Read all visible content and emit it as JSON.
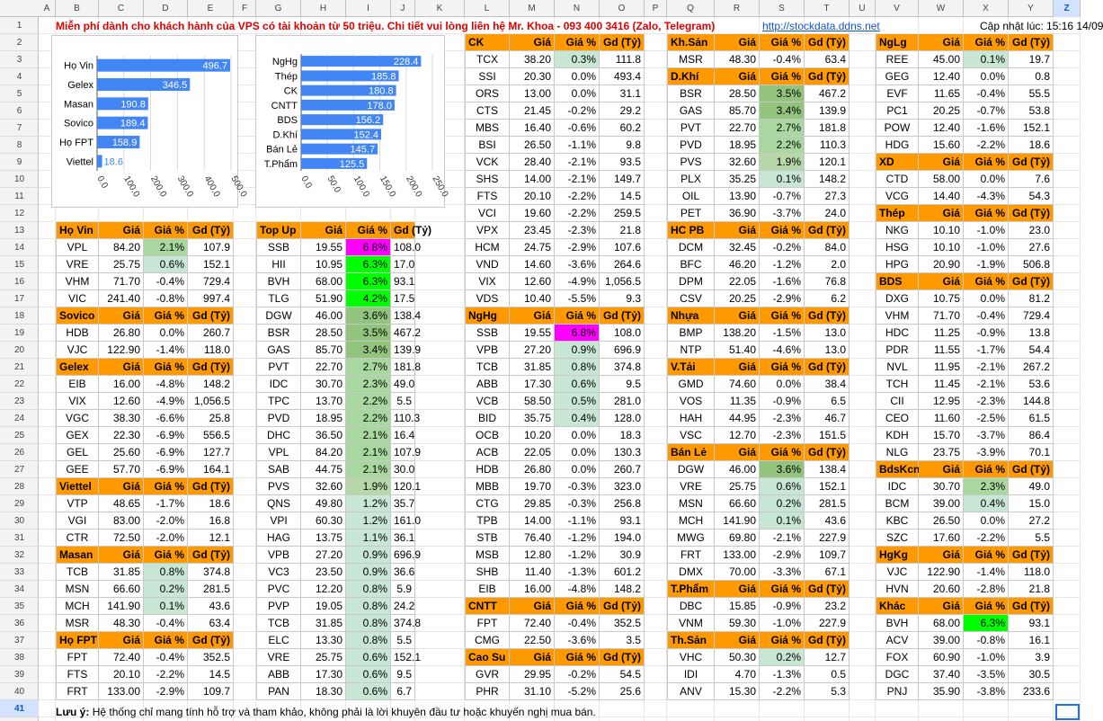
{
  "columns": [
    "A",
    "B",
    "C",
    "D",
    "E",
    "F",
    "G",
    "H",
    "I",
    "J",
    "K",
    "L",
    "M",
    "N",
    "O",
    "P",
    "Q",
    "R",
    "S",
    "T",
    "U",
    "V",
    "W",
    "X",
    "Y",
    "Z"
  ],
  "selected_column": "Z",
  "selected_row": "41",
  "banner": {
    "message": "Miễn phí dành cho khách hành của VPS có tài khoản từ 50 triệu. Chi tiết vui lòng liên hệ Mr. Khoa - 093 400 3416 (Zalo, Telegram)",
    "link": "http://stockdata.ddns.net",
    "updated": "Cập nhật lúc: 15:16 14/09"
  },
  "footnote": {
    "label": "Lưu ý:",
    "text": " Hệ thống chỉ mang tính hỗ trợ và tham khảo, không phải là lời khuyên đầu tư hoặc khuyến nghị mua bán."
  },
  "colors": {
    "header_orange": "#ff9900",
    "bar_blue": "#4285f4",
    "magenta": "#ff00ff",
    "bright_green": "#00ff00"
  },
  "chart_data": [
    {
      "type": "bar",
      "orientation": "horizontal",
      "categories": [
        "Họ Vin",
        "Gelex",
        "Masan",
        "Sovico",
        "Họ FPT",
        "Viettel"
      ],
      "values": [
        496.7,
        346.5,
        190.8,
        189.4,
        158.9,
        18.6
      ],
      "value_labels": [
        "496.7",
        "346.5",
        "190.8",
        "189.4",
        "158.9",
        "18.6"
      ],
      "xlim": [
        0,
        500
      ],
      "ticks": [
        "0.0",
        "100.0",
        "200.0",
        "300.0",
        "400.0",
        "500.0"
      ],
      "grid": true
    },
    {
      "type": "bar",
      "orientation": "horizontal",
      "categories": [
        "NgHg",
        "Thép",
        "CK",
        "CNTT",
        "BDS",
        "D.Khí",
        "Bán Lẻ",
        "T.Phẩm"
      ],
      "values": [
        228.4,
        185.8,
        180.8,
        178.0,
        156.2,
        152.4,
        145.7,
        125.5
      ],
      "value_labels": [
        "228.4",
        "185.8",
        "180.8",
        "178.0",
        "156.2",
        "152.4",
        "145.7",
        "125.5"
      ],
      "xlim": [
        0,
        250
      ],
      "ticks": [
        "0.0",
        "50.0",
        "100.0",
        "150.0",
        "200.0",
        "250.0"
      ],
      "grid": true
    }
  ],
  "tables": [
    {
      "rows": [
        [
          "Họ Vin",
          "Giá",
          "Giá %",
          "Gd (Tỷ)"
        ],
        [
          "VPL",
          "84.20",
          "2.1%",
          "107.9"
        ],
        [
          "VRE",
          "25.75",
          "0.6%",
          "152.1"
        ],
        [
          "VHM",
          "71.70",
          "-0.4%",
          "729.4"
        ],
        [
          "VIC",
          "241.40",
          "-0.8%",
          "997.4"
        ],
        [
          "Sovico",
          "Giá",
          "Giá %",
          "Gd (Tỷ)"
        ],
        [
          "HDB",
          "26.80",
          "0.0%",
          "260.7"
        ],
        [
          "VJC",
          "122.90",
          "-1.4%",
          "118.0"
        ],
        [
          "Gelex",
          "Giá",
          "Giá %",
          "Gd (Tỷ)"
        ],
        [
          "EIB",
          "16.00",
          "-4.8%",
          "148.2"
        ],
        [
          "VIX",
          "12.60",
          "-4.9%",
          "1,056.5"
        ],
        [
          "VGC",
          "38.30",
          "-6.6%",
          "25.8"
        ],
        [
          "GEX",
          "22.30",
          "-6.9%",
          "556.5"
        ],
        [
          "GEL",
          "25.60",
          "-6.9%",
          "127.7"
        ],
        [
          "GEE",
          "57.70",
          "-6.9%",
          "164.1"
        ],
        [
          "Viettel",
          "Giá",
          "Giá %",
          "Gd (Tỷ)"
        ],
        [
          "VTP",
          "48.65",
          "-1.7%",
          "18.6"
        ],
        [
          "VGI",
          "83.00",
          "-2.0%",
          "16.8"
        ],
        [
          "CTR",
          "72.50",
          "-2.0%",
          "12.1"
        ],
        [
          "Masan",
          "Giá",
          "Giá %",
          "Gd (Tỷ)"
        ],
        [
          "TCB",
          "31.85",
          "0.8%",
          "374.8"
        ],
        [
          "MSN",
          "66.60",
          "0.2%",
          "281.5"
        ],
        [
          "MCH",
          "141.90",
          "0.1%",
          "43.6"
        ],
        [
          "MSR",
          "48.30",
          "-0.4%",
          "63.4"
        ],
        [
          "Họ FPT",
          "Giá",
          "Giá %",
          "Gd (Tỷ)"
        ],
        [
          "FPT",
          "72.40",
          "-0.4%",
          "352.5"
        ],
        [
          "FTS",
          "20.10",
          "-2.2%",
          "14.5"
        ],
        [
          "FRT",
          "133.00",
          "-2.9%",
          "109.7"
        ]
      ]
    },
    {
      "rows": [
        [
          "Top Up",
          "Giá",
          "Giá %",
          "Gd (Tỷ)"
        ],
        [
          "SSB",
          "19.55",
          "6.8%",
          "108.0"
        ],
        [
          "HII",
          "10.95",
          "6.3%",
          "17.0"
        ],
        [
          "BVH",
          "68.00",
          "6.3%",
          "93.1"
        ],
        [
          "TLG",
          "51.90",
          "4.2%",
          "17.5"
        ],
        [
          "DGW",
          "46.00",
          "3.6%",
          "138.4"
        ],
        [
          "BSR",
          "28.50",
          "3.5%",
          "467.2"
        ],
        [
          "GAS",
          "85.70",
          "3.4%",
          "139.9"
        ],
        [
          "PVT",
          "22.70",
          "2.7%",
          "181.8"
        ],
        [
          "IDC",
          "30.70",
          "2.3%",
          "49.0"
        ],
        [
          "TPC",
          "13.70",
          "2.2%",
          "5.5"
        ],
        [
          "PVD",
          "18.95",
          "2.2%",
          "110.3"
        ],
        [
          "DHC",
          "36.50",
          "2.1%",
          "16.4"
        ],
        [
          "VPL",
          "84.20",
          "2.1%",
          "107.9"
        ],
        [
          "SAB",
          "44.75",
          "2.1%",
          "30.0"
        ],
        [
          "PVS",
          "32.60",
          "1.9%",
          "120.1"
        ],
        [
          "QNS",
          "49.80",
          "1.2%",
          "35.7"
        ],
        [
          "VPI",
          "60.30",
          "1.2%",
          "161.0"
        ],
        [
          "HAG",
          "13.75",
          "1.1%",
          "36.1"
        ],
        [
          "VPB",
          "27.20",
          "0.9%",
          "696.9"
        ],
        [
          "VC3",
          "23.50",
          "0.9%",
          "36.6"
        ],
        [
          "PVC",
          "12.20",
          "0.8%",
          "5.9"
        ],
        [
          "PVP",
          "19.05",
          "0.8%",
          "24.2"
        ],
        [
          "TCB",
          "31.85",
          "0.8%",
          "374.8"
        ],
        [
          "ELC",
          "13.30",
          "0.8%",
          "5.5"
        ],
        [
          "VRE",
          "25.75",
          "0.6%",
          "152.1"
        ],
        [
          "ABB",
          "17.30",
          "0.6%",
          "9.5"
        ],
        [
          "PAN",
          "18.30",
          "0.6%",
          "6.7"
        ]
      ]
    },
    {
      "rows": [
        [
          "CK",
          "Giá",
          "Giá %",
          "Gd (Tỷ)"
        ],
        [
          "TCX",
          "38.20",
          "0.3%",
          "111.8"
        ],
        [
          "SSI",
          "20.30",
          "0.0%",
          "493.4"
        ],
        [
          "ORS",
          "13.00",
          "0.0%",
          "31.1"
        ],
        [
          "CTS",
          "21.45",
          "-0.2%",
          "29.2"
        ],
        [
          "MBS",
          "16.40",
          "-0.6%",
          "60.2"
        ],
        [
          "BSI",
          "26.50",
          "-1.1%",
          "9.8"
        ],
        [
          "VCK",
          "28.40",
          "-2.1%",
          "93.5"
        ],
        [
          "SHS",
          "14.00",
          "-2.1%",
          "149.7"
        ],
        [
          "FTS",
          "20.10",
          "-2.2%",
          "14.5"
        ],
        [
          "VCI",
          "19.60",
          "-2.2%",
          "259.5"
        ],
        [
          "VPX",
          "23.45",
          "-2.3%",
          "21.8"
        ],
        [
          "HCM",
          "24.75",
          "-2.9%",
          "107.6"
        ],
        [
          "VND",
          "14.60",
          "-3.6%",
          "264.6"
        ],
        [
          "VIX",
          "12.60",
          "-4.9%",
          "1,056.5"
        ],
        [
          "VDS",
          "10.40",
          "-5.5%",
          "9.3"
        ],
        [
          "NgHg",
          "Giá",
          "Giá %",
          "Gd (Tỷ)"
        ],
        [
          "SSB",
          "19.55",
          "6.8%",
          "108.0"
        ],
        [
          "VPB",
          "27.20",
          "0.9%",
          "696.9"
        ],
        [
          "TCB",
          "31.85",
          "0.8%",
          "374.8"
        ],
        [
          "ABB",
          "17.30",
          "0.6%",
          "9.5"
        ],
        [
          "VCB",
          "58.50",
          "0.5%",
          "281.0"
        ],
        [
          "BID",
          "35.75",
          "0.4%",
          "128.0"
        ],
        [
          "OCB",
          "10.20",
          "0.0%",
          "18.3"
        ],
        [
          "ACB",
          "22.05",
          "0.0%",
          "130.3"
        ],
        [
          "HDB",
          "26.80",
          "0.0%",
          "260.7"
        ],
        [
          "MBB",
          "19.70",
          "-0.3%",
          "323.0"
        ],
        [
          "CTG",
          "29.85",
          "-0.3%",
          "256.8"
        ],
        [
          "TPB",
          "14.00",
          "-1.1%",
          "93.1"
        ],
        [
          "STB",
          "76.40",
          "-1.2%",
          "194.0"
        ],
        [
          "MSB",
          "12.80",
          "-1.2%",
          "30.9"
        ],
        [
          "SHB",
          "11.40",
          "-1.3%",
          "601.2"
        ],
        [
          "EIB",
          "16.00",
          "-4.8%",
          "148.2"
        ],
        [
          "CNTT",
          "Giá",
          "Giá %",
          "Gd (Tỷ)"
        ],
        [
          "FPT",
          "72.40",
          "-0.4%",
          "352.5"
        ],
        [
          "CMG",
          "22.50",
          "-3.6%",
          "3.5"
        ],
        [
          "Cao Su",
          "Giá",
          "Giá %",
          "Gd (Tỷ)"
        ],
        [
          "GVR",
          "29.95",
          "-0.2%",
          "54.5"
        ],
        [
          "PHR",
          "31.10",
          "-5.2%",
          "25.6"
        ]
      ]
    },
    {
      "rows": [
        [
          "Kh.Sản",
          "Giá",
          "Giá %",
          "Gd (Tỷ)"
        ],
        [
          "MSR",
          "48.30",
          "-0.4%",
          "63.4"
        ],
        [
          "D.Khí",
          "Giá",
          "Giá %",
          "Gd (Tỷ)"
        ],
        [
          "BSR",
          "28.50",
          "3.5%",
          "467.2"
        ],
        [
          "GAS",
          "85.70",
          "3.4%",
          "139.9"
        ],
        [
          "PVT",
          "22.70",
          "2.7%",
          "181.8"
        ],
        [
          "PVD",
          "18.95",
          "2.2%",
          "110.3"
        ],
        [
          "PVS",
          "32.60",
          "1.9%",
          "120.1"
        ],
        [
          "PLX",
          "35.25",
          "0.1%",
          "148.2"
        ],
        [
          "OIL",
          "13.90",
          "-0.7%",
          "27.3"
        ],
        [
          "PET",
          "36.90",
          "-3.7%",
          "24.0"
        ],
        [
          "HC PB",
          "Giá",
          "Giá %",
          "Gd (Tỷ)"
        ],
        [
          "DCM",
          "32.45",
          "-0.2%",
          "84.0"
        ],
        [
          "BFC",
          "46.20",
          "-1.2%",
          "2.0"
        ],
        [
          "DPM",
          "22.05",
          "-1.6%",
          "76.8"
        ],
        [
          "CSV",
          "20.25",
          "-2.9%",
          "6.2"
        ],
        [
          "Nhựa",
          "Giá",
          "Giá %",
          "Gd (Tỷ)"
        ],
        [
          "BMP",
          "138.20",
          "-1.5%",
          "13.0"
        ],
        [
          "NTP",
          "51.40",
          "-4.6%",
          "13.0"
        ],
        [
          "V.Tải",
          "Giá",
          "Giá %",
          "Gd (Tỷ)"
        ],
        [
          "GMD",
          "74.60",
          "0.0%",
          "38.4"
        ],
        [
          "VOS",
          "11.35",
          "-0.9%",
          "6.5"
        ],
        [
          "HAH",
          "44.95",
          "-2.3%",
          "46.7"
        ],
        [
          "VSC",
          "12.70",
          "-2.3%",
          "151.5"
        ],
        [
          "Bán Lẻ",
          "Giá",
          "Giá %",
          "Gd (Tỷ)"
        ],
        [
          "DGW",
          "46.00",
          "3.6%",
          "138.4"
        ],
        [
          "VRE",
          "25.75",
          "0.6%",
          "152.1"
        ],
        [
          "MSN",
          "66.60",
          "0.2%",
          "281.5"
        ],
        [
          "MCH",
          "141.90",
          "0.1%",
          "43.6"
        ],
        [
          "MWG",
          "69.80",
          "-2.1%",
          "227.9"
        ],
        [
          "FRT",
          "133.00",
          "-2.9%",
          "109.7"
        ],
        [
          "DMX",
          "70.00",
          "-3.3%",
          "67.1"
        ],
        [
          "T.Phẩm",
          "Giá",
          "Giá %",
          "Gd (Tỷ)"
        ],
        [
          "DBC",
          "15.85",
          "-0.9%",
          "23.2"
        ],
        [
          "VNM",
          "59.30",
          "-1.0%",
          "227.9"
        ],
        [
          "Th.Sản",
          "Giá",
          "Giá %",
          "Gd (Tỷ)"
        ],
        [
          "VHC",
          "50.30",
          "0.2%",
          "12.7"
        ],
        [
          "IDI",
          "4.70",
          "-1.3%",
          "0.5"
        ],
        [
          "ANV",
          "15.30",
          "-2.2%",
          "5.3"
        ]
      ]
    },
    {
      "rows": [
        [
          "NgLg",
          "Giá",
          "Giá %",
          "Gd (Tỷ)"
        ],
        [
          "REE",
          "45.00",
          "0.1%",
          "19.7"
        ],
        [
          "GEG",
          "12.40",
          "0.0%",
          "0.8"
        ],
        [
          "EVF",
          "11.65",
          "-0.4%",
          "55.5"
        ],
        [
          "PC1",
          "20.25",
          "-0.7%",
          "53.8"
        ],
        [
          "POW",
          "12.40",
          "-1.6%",
          "152.1"
        ],
        [
          "HDG",
          "15.60",
          "-2.2%",
          "18.6"
        ],
        [
          "XD",
          "Giá",
          "Giá %",
          "Gd (Tỷ)"
        ],
        [
          "CTD",
          "58.00",
          "0.0%",
          "7.6"
        ],
        [
          "VCG",
          "14.40",
          "-4.3%",
          "54.3"
        ],
        [
          "Thép",
          "Giá",
          "Giá %",
          "Gd (Tỷ)"
        ],
        [
          "NKG",
          "10.10",
          "-1.0%",
          "23.0"
        ],
        [
          "HSG",
          "10.10",
          "-1.0%",
          "27.6"
        ],
        [
          "HPG",
          "20.90",
          "-1.9%",
          "506.8"
        ],
        [
          "BDS",
          "Giá",
          "Giá %",
          "Gd (Tỷ)"
        ],
        [
          "DXG",
          "10.75",
          "0.0%",
          "81.2"
        ],
        [
          "VHM",
          "71.70",
          "-0.4%",
          "729.4"
        ],
        [
          "HDC",
          "11.25",
          "-0.9%",
          "13.8"
        ],
        [
          "PDR",
          "11.55",
          "-1.7%",
          "54.4"
        ],
        [
          "NVL",
          "11.95",
          "-2.1%",
          "267.2"
        ],
        [
          "TCH",
          "11.45",
          "-2.1%",
          "53.6"
        ],
        [
          "CII",
          "12.95",
          "-2.3%",
          "144.8"
        ],
        [
          "CEO",
          "11.60",
          "-2.5%",
          "61.5"
        ],
        [
          "KDH",
          "15.70",
          "-3.7%",
          "86.4"
        ],
        [
          "NLG",
          "23.75",
          "-3.9%",
          "70.1"
        ],
        [
          "BdsKcn",
          "Giá",
          "Giá %",
          "Gd (Tỷ)"
        ],
        [
          "IDC",
          "30.70",
          "2.3%",
          "49.0"
        ],
        [
          "BCM",
          "39.00",
          "0.4%",
          "15.0"
        ],
        [
          "KBC",
          "26.50",
          "0.0%",
          "27.2"
        ],
        [
          "SZC",
          "17.60",
          "-2.2%",
          "5.5"
        ],
        [
          "HgKg",
          "Giá",
          "Giá %",
          "Gd (Tỷ)"
        ],
        [
          "VJC",
          "122.90",
          "-1.4%",
          "118.0"
        ],
        [
          "HVN",
          "20.60",
          "-2.8%",
          "21.8"
        ],
        [
          "Khác",
          "Giá",
          "Giá %",
          "Gd (Tỷ)"
        ],
        [
          "BVH",
          "68.00",
          "6.3%",
          "93.1"
        ],
        [
          "ACV",
          "39.00",
          "-0.8%",
          "16.1"
        ],
        [
          "FOX",
          "60.90",
          "-1.0%",
          "3.9"
        ],
        [
          "DGC",
          "37.40",
          "-3.5%",
          "30.5"
        ],
        [
          "PNJ",
          "35.90",
          "-3.8%",
          "233.6"
        ]
      ]
    }
  ]
}
